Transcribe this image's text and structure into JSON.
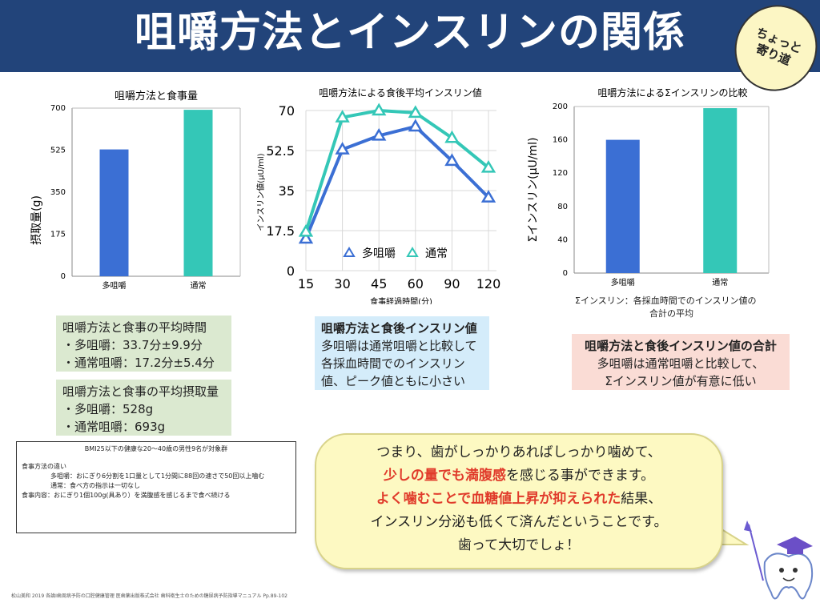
{
  "header": {
    "title": "咀嚼方法とインスリンの関係",
    "badge_line1": "ちょっと",
    "badge_line2": "寄り道",
    "bg_color": "#22447a"
  },
  "colors": {
    "blue": "#3b6fd4",
    "teal": "#34c7b7",
    "green_box": "#dbe9d0",
    "blue_box": "#d4ecfa",
    "red_box": "#fadcd5",
    "speech": "#fdf9c2",
    "red_text": "#e03b2b"
  },
  "chart_data": [
    {
      "type": "bar",
      "title": "咀嚼方法と食事量",
      "categories": [
        "多咀嚼",
        "通常"
      ],
      "values": [
        528,
        693
      ],
      "ylabel": "摂取量(g)",
      "ylim": [
        0,
        700
      ],
      "yticks": [
        "0",
        "175",
        "350",
        "525",
        "700"
      ],
      "grid": false
    },
    {
      "type": "line",
      "title": "咀嚼方法による食後平均インスリン値",
      "x": [
        "15",
        "30",
        "45",
        "60",
        "90",
        "120"
      ],
      "series": [
        {
          "name": "多咀嚼",
          "values": [
            14,
            53,
            59,
            63,
            48,
            32
          ]
        },
        {
          "name": "通常",
          "values": [
            17,
            67,
            70,
            69,
            58,
            45
          ]
        }
      ],
      "xlabel": "食事経過時間(分)",
      "ylabel": "インスリン値(μU/ml)",
      "ylim": [
        0,
        70
      ],
      "yticks": [
        "0",
        "17.5",
        "35",
        "52.5",
        "70"
      ],
      "grid": true,
      "legend": "bottom-center"
    },
    {
      "type": "bar",
      "title": "咀嚼方法によるΣインスリンの比較",
      "categories": [
        "多咀嚼",
        "通常"
      ],
      "values": [
        160,
        198
      ],
      "ylabel": "Σインスリン(μU/ml)",
      "ylim": [
        0,
        200
      ],
      "yticks": [
        "0",
        "40",
        "80",
        "120",
        "160",
        "200"
      ],
      "grid": false
    }
  ],
  "sigma_note": {
    "line1": "Σインスリン：各採血時間でのインスリン値の",
    "line2": "合計の平均"
  },
  "boxes": {
    "time": {
      "title": "咀嚼方法と食事の平均時間",
      "line1": "・多咀嚼：33.7分±9.9分",
      "line2": "・通常咀嚼：17.2分±5.4分"
    },
    "intake": {
      "title": "咀嚼方法と食事の平均摂取量",
      "line1": "・多咀嚼：528g",
      "line2": "・通常咀嚼：693g"
    },
    "insulin": {
      "title": "咀嚼方法と食後インスリン値",
      "line1": "多咀嚼は通常咀嚼と比較して",
      "line2": "各採血時間でのインスリン",
      "line3": "値、ピーク値ともに小さい"
    },
    "sum": {
      "title": "咀嚼方法と食後インスリン値の合計",
      "line1": "多咀嚼は通常咀嚼と比較して、",
      "line2": "Σインスリン値が有意に低い"
    }
  },
  "notes": {
    "subject": "BMI25以下の健康な20〜40歳の男性9名が対象群",
    "method_label": "食事方法の違い",
    "method1": "多咀嚼：おにぎり6分割を1口量として1分間に88回の速さで50回以上噛む",
    "method2": "通常：食べ方の指示は一切なし",
    "content": "食事内容：おにぎり1個100g(具あり）を満腹感を感じるまで食べ続ける"
  },
  "speech": {
    "l1": "つまり、歯がしっかりあればしっかり噛めて、",
    "l2_red": "少しの量でも満腹感",
    "l2_rest": "を感じる事ができます。",
    "l3_red": "よく噛むことで血糖値上昇が抑えられた",
    "l3_rest": "結果、",
    "l4": "インスリン分泌も低くて済んだということです。",
    "l5": "歯って大切でしょ！"
  },
  "footer": "松山美和 2019 各論Ⅰ歯周病予防の口腔健康管理 医歯薬出版株式会社 歯科衛生士のための糖尿病予防指導マニュアル Pp.89-102"
}
